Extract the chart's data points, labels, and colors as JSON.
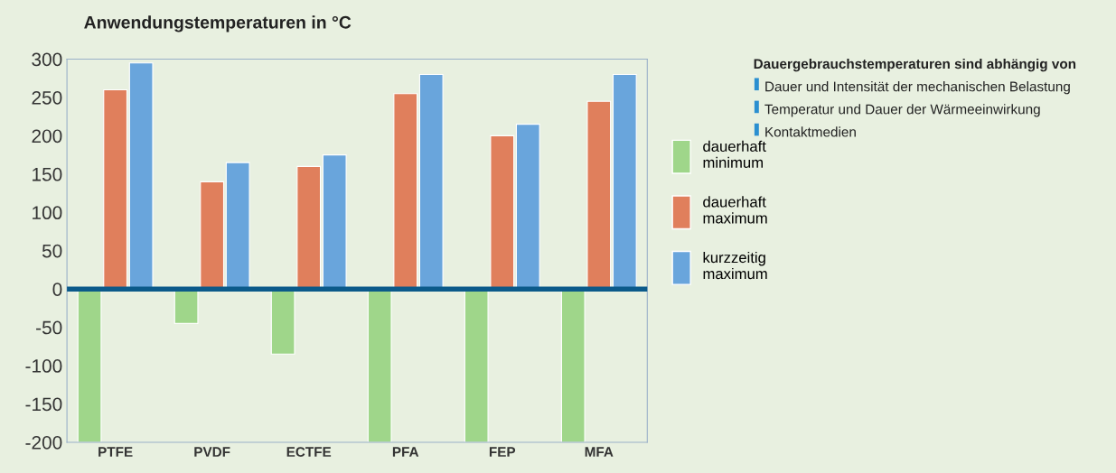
{
  "chart_data": {
    "type": "bar",
    "title": "Anwendungstemperaturen in °C",
    "categories": [
      "PTFE",
      "PVDF",
      "ECTFE",
      "PFA",
      "FEP",
      "MFA"
    ],
    "series": [
      {
        "name": "dauerhaft minimum",
        "color": "#9fd68a",
        "values": [
          -200,
          -45,
          -85,
          -200,
          -200,
          -200
        ]
      },
      {
        "name": "dauerhaft maximum",
        "color": "#e07f5c",
        "values": [
          260,
          140,
          160,
          255,
          200,
          245
        ]
      },
      {
        "name": "kurzzeitig maximum",
        "color": "#69a5dc",
        "values": [
          295,
          165,
          175,
          280,
          215,
          280
        ]
      }
    ],
    "ylim": [
      -200,
      300
    ],
    "yticks": [
      -200,
      -150,
      -100,
      -50,
      0,
      50,
      100,
      150,
      200,
      250,
      300
    ],
    "ref_lines": [
      {
        "axis": "y",
        "value": 0,
        "color": "#0b5a8a"
      }
    ],
    "legend": "right",
    "grid": false,
    "annotations": [
      "Dauergebrauchstemperaturen sind abhängig von",
      "Dauer und Intensität der mechanischen Belastung",
      "Temperatur und Dauer der Wärmeeinwirkung",
      "Kontaktmedien"
    ]
  }
}
